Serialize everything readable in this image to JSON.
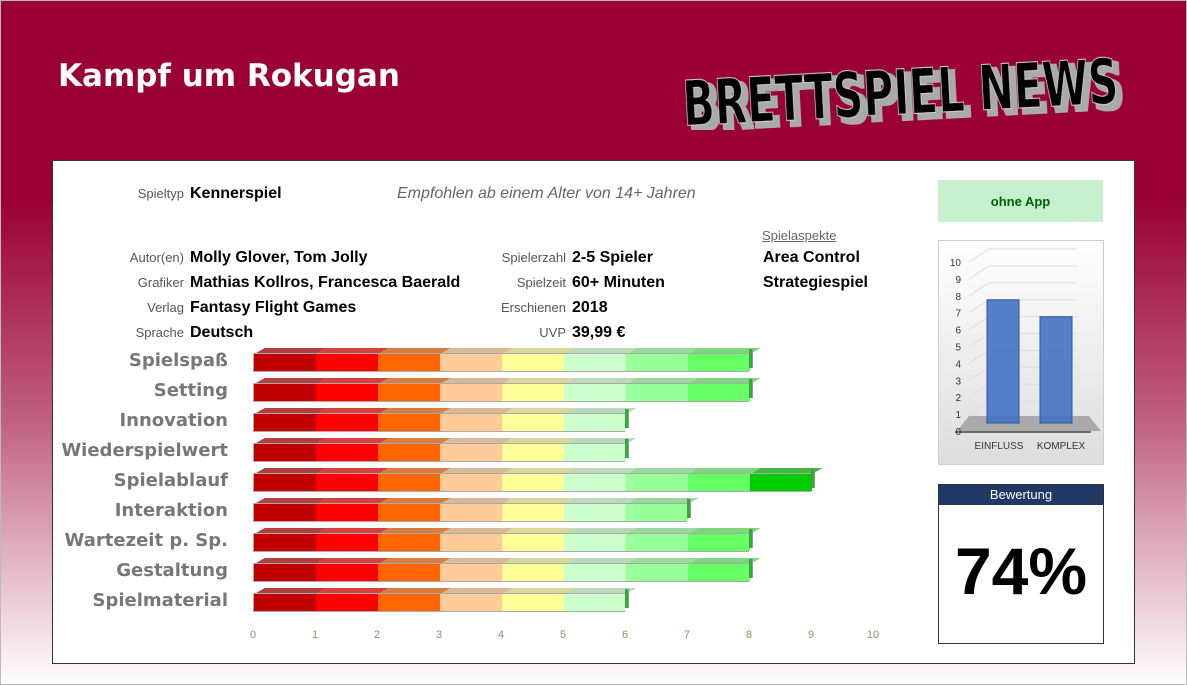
{
  "header": {
    "title": "Kampf um Rokugan",
    "logo_text": "BRETTSPIEL NEWS"
  },
  "info": {
    "spieltyp_label": "Spieltyp",
    "spieltyp": "Kennerspiel",
    "age_note": "Empfohlen ab einem Alter von 14+ Jahren",
    "left": [
      {
        "label": "Autor(en)",
        "value": "Molly Glover, Tom Jolly"
      },
      {
        "label": "Grafiker",
        "value": "Mathias Kollros, Francesca Baerald"
      },
      {
        "label": "Verlag",
        "value": "Fantasy Flight Games"
      },
      {
        "label": "Sprache",
        "value": "Deutsch"
      }
    ],
    "mid": [
      {
        "label": "Spielerzahl",
        "value": "2-5 Spieler"
      },
      {
        "label": "Spielzeit",
        "value": "60+ Minuten"
      },
      {
        "label": "Erschienen",
        "value": "2018"
      },
      {
        "label": "UVP",
        "value": "39,99 €"
      }
    ],
    "aspects_label": "Spielaspekte",
    "aspects": [
      "Area Control",
      "Strategiespiel"
    ]
  },
  "app_label": "ohne App",
  "chart_data": [
    {
      "type": "bar",
      "orientation": "horizontal",
      "categories": [
        "Spielspaß",
        "Setting",
        "Innovation",
        "Wiederspielwert",
        "Spielablauf",
        "Interaktion",
        "Wartezeit p. Sp.",
        "Gestaltung",
        "Spielmaterial"
      ],
      "values": [
        8,
        8,
        6,
        6,
        9,
        7,
        8,
        8,
        6
      ],
      "xlim": [
        0,
        10
      ],
      "xticks": [
        "0",
        "1",
        "2",
        "3",
        "4",
        "5",
        "6",
        "7",
        "8",
        "9",
        "10"
      ],
      "segment_colors": [
        "#c00000",
        "#ff0000",
        "#ff6600",
        "#ffcc99",
        "#ffff99",
        "#ccffcc",
        "#99ff99",
        "#66ff66",
        "#00cc00",
        "#00a000"
      ]
    },
    {
      "type": "bar",
      "categories": [
        "EINFLUSS",
        "KOMPLEX"
      ],
      "values": [
        8,
        7
      ],
      "ylim": [
        0,
        10
      ],
      "yticks": [
        "0",
        "1",
        "2",
        "3",
        "4",
        "5",
        "6",
        "7",
        "8",
        "9",
        "10"
      ],
      "color": "#4472c4"
    }
  ],
  "rating": {
    "label": "Bewertung",
    "value": "74%"
  }
}
